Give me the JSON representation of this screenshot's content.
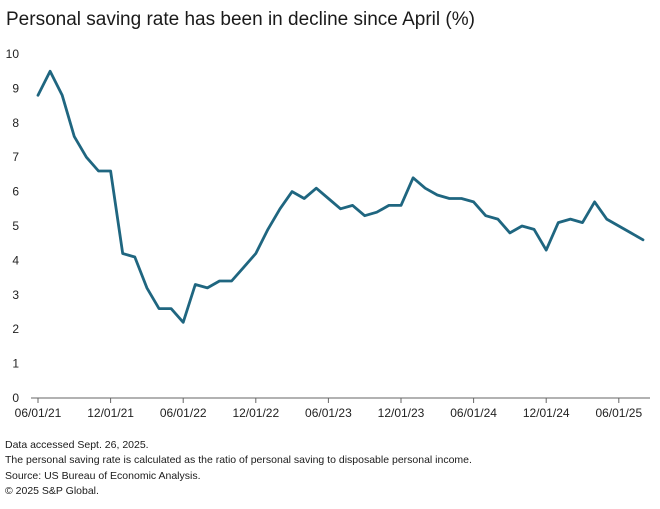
{
  "title": "Personal saving rate has been in decline since April (%)",
  "colors": {
    "line": "#1f6680",
    "axis": "#666666",
    "text": "#222222"
  },
  "notes": [
    "Data accessed Sept. 26, 2025.",
    "The personal saving rate is calculated as the ratio of personal saving to disposable personal income.",
    "Source: US Bureau of Economic Analysis.",
    "© 2025 S&P Global."
  ],
  "chart_data": {
    "type": "line",
    "title": "Personal saving rate has been in decline since April (%)",
    "xlabel": "",
    "ylabel": "",
    "ylim": [
      0,
      10
    ],
    "yticks": [
      "0",
      "1",
      "2",
      "3",
      "4",
      "5",
      "6",
      "7",
      "8",
      "9",
      "10"
    ],
    "xticks": [
      {
        "index": 0,
        "label": "06/01/21"
      },
      {
        "index": 6,
        "label": "12/01/21"
      },
      {
        "index": 12,
        "label": "06/01/22"
      },
      {
        "index": 18,
        "label": "12/01/22"
      },
      {
        "index": 24,
        "label": "06/01/23"
      },
      {
        "index": 30,
        "label": "12/01/23"
      },
      {
        "index": 36,
        "label": "06/01/24"
      },
      {
        "index": 42,
        "label": "12/01/24"
      },
      {
        "index": 48,
        "label": "06/01/25"
      }
    ],
    "x": [
      "06/21",
      "07/21",
      "08/21",
      "09/21",
      "10/21",
      "11/21",
      "12/21",
      "01/22",
      "02/22",
      "03/22",
      "04/22",
      "05/22",
      "06/22",
      "07/22",
      "08/22",
      "09/22",
      "10/22",
      "11/22",
      "12/22",
      "01/23",
      "02/23",
      "03/23",
      "04/23",
      "05/23",
      "06/23",
      "07/23",
      "08/23",
      "09/23",
      "10/23",
      "11/23",
      "12/23",
      "01/24",
      "02/24",
      "03/24",
      "04/24",
      "05/24",
      "06/24",
      "07/24",
      "08/24",
      "09/24",
      "10/24",
      "11/24",
      "12/24",
      "01/25",
      "02/25",
      "03/25",
      "04/25",
      "05/25",
      "06/25",
      "07/25",
      "08/25"
    ],
    "series": [
      {
        "name": "Personal saving rate",
        "values": [
          8.8,
          9.5,
          8.8,
          7.6,
          7.0,
          6.6,
          6.6,
          4.2,
          4.1,
          3.2,
          2.6,
          2.6,
          2.2,
          3.3,
          3.2,
          3.4,
          3.4,
          3.8,
          4.2,
          4.9,
          5.5,
          6.0,
          5.8,
          6.1,
          5.8,
          5.5,
          5.6,
          5.3,
          5.4,
          5.6,
          5.6,
          6.4,
          6.1,
          5.9,
          5.8,
          5.8,
          5.7,
          5.3,
          5.2,
          4.8,
          5.0,
          4.9,
          4.3,
          5.1,
          5.2,
          5.1,
          5.7,
          5.2,
          5.0,
          4.8,
          4.6
        ]
      }
    ]
  }
}
